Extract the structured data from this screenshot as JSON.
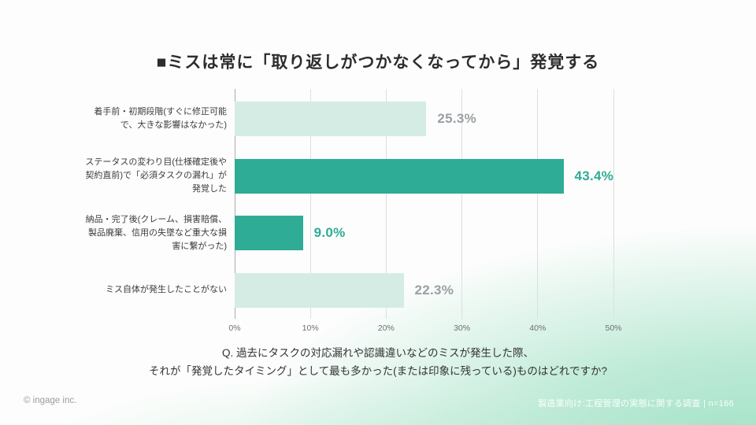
{
  "title": "■ミスは常に「取り返しがつかなくなってから」発覚する",
  "chart_data": {
    "type": "bar",
    "orientation": "horizontal",
    "categories": [
      "着手前・初期段階(すぐに修正可能で、大きな影響はなかった)",
      "ステータスの変わり目(仕様確定後や契約直前)で「必須タスクの漏れ」が発覚した",
      "納品・完了後(クレーム、損害賠償、製品廃棄、信用の失墜など重大な損害に繋がった)",
      "ミス自体が発生したことがない"
    ],
    "values": [
      25.3,
      43.4,
      9.0,
      22.3
    ],
    "value_labels": [
      "25.3%",
      "43.4%",
      "9.0%",
      "22.3%"
    ],
    "emphasized": [
      false,
      true,
      true,
      false
    ],
    "xlim": [
      0,
      50
    ],
    "x_ticks": [
      "0%",
      "10%",
      "20%",
      "30%",
      "40%",
      "50%"
    ],
    "grid": true,
    "legend": false,
    "colors": {
      "bar_emphasis": "#2fac96",
      "bar_muted": "#d5ece5",
      "value_emphasis": "#2fac96",
      "value_muted": "#9b9fa3",
      "gridline": "#dedede",
      "axis_line": "#ababab",
      "tick_label": "#6f6f6f",
      "category_label": "#3c3c3c"
    }
  },
  "question": {
    "line1": "Q. 過去にタスクの対応漏れや認識違いなどのミスが発生した際、",
    "line2": "それが「発覚したタイミング」として最も多かった(または印象に残っている)ものはどれですか?"
  },
  "footer": {
    "copyright": "© ingage inc.",
    "survey": "製造業向け:工程管理の実態に関する調査 | n=166"
  }
}
